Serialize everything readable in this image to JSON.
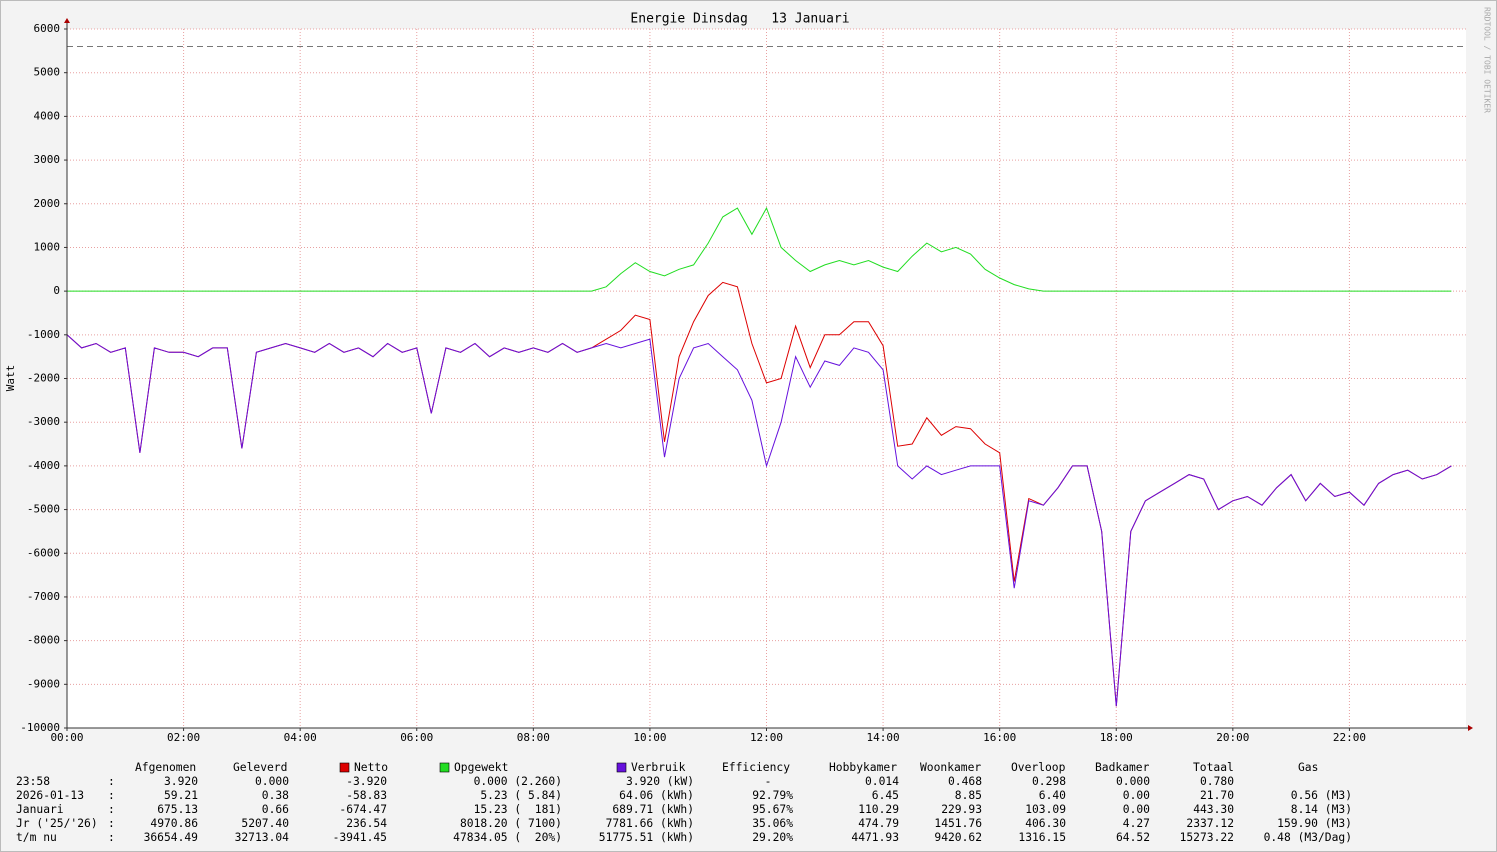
{
  "chart_data": {
    "type": "line",
    "title": "Energie Dinsdag   13 Januari",
    "y_label": "Watt",
    "watermark": "RRDTOOL / TOBI OETIKER",
    "x": [
      "00:00",
      "00:15",
      "00:30",
      "00:45",
      "01:00",
      "01:15",
      "01:30",
      "01:45",
      "02:00",
      "02:15",
      "02:30",
      "02:45",
      "03:00",
      "03:15",
      "03:30",
      "03:45",
      "04:00",
      "04:15",
      "04:30",
      "04:45",
      "05:00",
      "05:15",
      "05:30",
      "05:45",
      "06:00",
      "06:15",
      "06:30",
      "06:45",
      "07:00",
      "07:15",
      "07:30",
      "07:45",
      "08:00",
      "08:15",
      "08:30",
      "08:45",
      "09:00",
      "09:15",
      "09:30",
      "09:45",
      "10:00",
      "10:15",
      "10:30",
      "10:45",
      "11:00",
      "11:15",
      "11:30",
      "11:45",
      "12:00",
      "12:15",
      "12:30",
      "12:45",
      "13:00",
      "13:15",
      "13:30",
      "13:45",
      "14:00",
      "14:15",
      "14:30",
      "14:45",
      "15:00",
      "15:15",
      "15:30",
      "15:45",
      "16:00",
      "16:15",
      "16:30",
      "16:45",
      "17:00",
      "17:15",
      "17:30",
      "17:45",
      "18:00",
      "18:15",
      "18:30",
      "18:45",
      "19:00",
      "19:15",
      "19:30",
      "19:45",
      "20:00",
      "20:15",
      "20:30",
      "20:45",
      "21:00",
      "21:15",
      "21:30",
      "21:45",
      "22:00",
      "22:15",
      "22:30",
      "22:45",
      "23:00",
      "23:15",
      "23:30",
      "23:45"
    ],
    "series": [
      {
        "name": "Netto",
        "color": "#dd0000",
        "values": [
          -1000,
          -1300,
          -1200,
          -1400,
          -1300,
          -3700,
          -1300,
          -1400,
          -1400,
          -1500,
          -1300,
          -1300,
          -3600,
          -1400,
          -1300,
          -1200,
          -1300,
          -1400,
          -1200,
          -1400,
          -1300,
          -1500,
          -1200,
          -1400,
          -1300,
          -2800,
          -1300,
          -1400,
          -1200,
          -1500,
          -1300,
          -1400,
          -1300,
          -1400,
          -1200,
          -1400,
          -1300,
          -1100,
          -900,
          -550,
          -650,
          -3450,
          -1500,
          -700,
          -100,
          200,
          100,
          -1200,
          -2100,
          -2000,
          -800,
          -1750,
          -1000,
          -1000,
          -700,
          -700,
          -1250,
          -3550,
          -3500,
          -2900,
          -3300,
          -3100,
          -3150,
          -3500,
          -3700,
          -6650,
          -4750,
          -4900,
          -4500,
          -4000,
          -4000,
          -5500,
          -9500,
          -5500,
          -4800,
          -4600,
          -4400,
          -4200,
          -4300,
          -5000,
          -4800,
          -4700,
          -4900,
          -4500,
          -4200,
          -4800,
          -4400,
          -4700,
          -4600,
          -4900,
          -4400,
          -4200,
          -4100,
          -4300,
          -4200,
          -4000
        ]
      },
      {
        "name": "Opgewekt",
        "color": "#22dd22",
        "values": [
          0,
          0,
          0,
          0,
          0,
          0,
          0,
          0,
          0,
          0,
          0,
          0,
          0,
          0,
          0,
          0,
          0,
          0,
          0,
          0,
          0,
          0,
          0,
          0,
          0,
          0,
          0,
          0,
          0,
          0,
          0,
          0,
          0,
          0,
          0,
          0,
          0,
          100,
          400,
          650,
          450,
          350,
          500,
          600,
          1100,
          1700,
          1900,
          1300,
          1900,
          1000,
          700,
          450,
          600,
          700,
          600,
          700,
          550,
          450,
          800,
          1100,
          900,
          1000,
          850,
          500,
          300,
          150,
          50,
          0,
          0,
          0,
          0,
          0,
          0,
          0,
          0,
          0,
          0,
          0,
          0,
          0,
          0,
          0,
          0,
          0,
          0,
          0,
          0,
          0,
          0,
          0,
          0,
          0,
          0,
          0,
          0,
          0
        ]
      },
      {
        "name": "Verbruik",
        "color": "#6611dd",
        "values": [
          -1000,
          -1300,
          -1200,
          -1400,
          -1300,
          -3700,
          -1300,
          -1400,
          -1400,
          -1500,
          -1300,
          -1300,
          -3600,
          -1400,
          -1300,
          -1200,
          -1300,
          -1400,
          -1200,
          -1400,
          -1300,
          -1500,
          -1200,
          -1400,
          -1300,
          -2800,
          -1300,
          -1400,
          -1200,
          -1500,
          -1300,
          -1400,
          -1300,
          -1400,
          -1200,
          -1400,
          -1300,
          -1200,
          -1300,
          -1200,
          -1100,
          -3800,
          -2000,
          -1300,
          -1200,
          -1500,
          -1800,
          -2500,
          -4000,
          -3000,
          -1500,
          -2200,
          -1600,
          -1700,
          -1300,
          -1400,
          -1800,
          -4000,
          -4300,
          -4000,
          -4200,
          -4100,
          -4000,
          -4000,
          -4000,
          -6800,
          -4800,
          -4900,
          -4500,
          -4000,
          -4000,
          -5500,
          -9500,
          -5500,
          -4800,
          -4600,
          -4400,
          -4200,
          -4300,
          -5000,
          -4800,
          -4700,
          -4900,
          -4500,
          -4200,
          -4800,
          -4400,
          -4700,
          -4600,
          -4900,
          -4400,
          -4200,
          -4100,
          -4300,
          -4200,
          -4000
        ]
      }
    ],
    "hrule": 5600,
    "xlim": [
      "00:00",
      "24:00"
    ],
    "xticks": [
      "00:00",
      "02:00",
      "04:00",
      "06:00",
      "08:00",
      "10:00",
      "12:00",
      "14:00",
      "16:00",
      "18:00",
      "20:00",
      "22:00"
    ],
    "ylim": [
      -10000,
      6000
    ],
    "yticks": [
      -10000,
      -9000,
      -8000,
      -7000,
      -6000,
      -5000,
      -4000,
      -3000,
      -2000,
      -1000,
      0,
      1000,
      2000,
      3000,
      4000,
      5000,
      6000
    ],
    "grid": true
  },
  "table": {
    "headers": [
      "Afgenomen",
      "Geleverd",
      "Efficiency",
      "Hobbykamer",
      "Woonkamer",
      "Overloop",
      "Badkamer",
      "Totaal",
      "Gas"
    ],
    "rows": [
      [
        "23:58",
        ":",
        "3.920",
        "0.000",
        "-3.920",
        "0.000 (2.260)",
        "3.920 (kW)",
        "-",
        "0.014",
        "0.468",
        "0.298",
        "0.000",
        "0.780"
      ],
      [
        "2026-01-13",
        ":",
        "59.21",
        "0.38",
        "-58.83",
        "5.23 ( 5.84)",
        "64.06 (kWh)",
        "92.79%",
        "6.45",
        "8.85",
        "6.40",
        "0.00",
        "21.70",
        "0.56 (M3)"
      ],
      [
        "Januari",
        ":",
        "675.13",
        "0.66",
        "-674.47",
        "15.23 (  181)",
        "689.71 (kWh)",
        "95.67%",
        "110.29",
        "229.93",
        "103.09",
        "0.00",
        "443.30",
        "8.14 (M3)"
      ],
      [
        "Jr ('25/'26)",
        ":",
        "4970.86",
        "5207.40",
        "236.54",
        "8018.20 ( 7100)",
        "7781.66 (kWh)",
        "35.06%",
        "474.79",
        "1451.76",
        "406.30",
        "4.27",
        "2337.12",
        "159.90 (M3)"
      ],
      [
        "t/m nu",
        ":",
        "36654.49",
        "32713.04",
        "-3941.45",
        "47834.05 (  20%)",
        "51775.51 (kWh)",
        "29.20%",
        "4471.93",
        "9420.62",
        "1316.15",
        "64.52",
        "15273.22",
        "0.48 (M3/Dag)"
      ]
    ]
  }
}
